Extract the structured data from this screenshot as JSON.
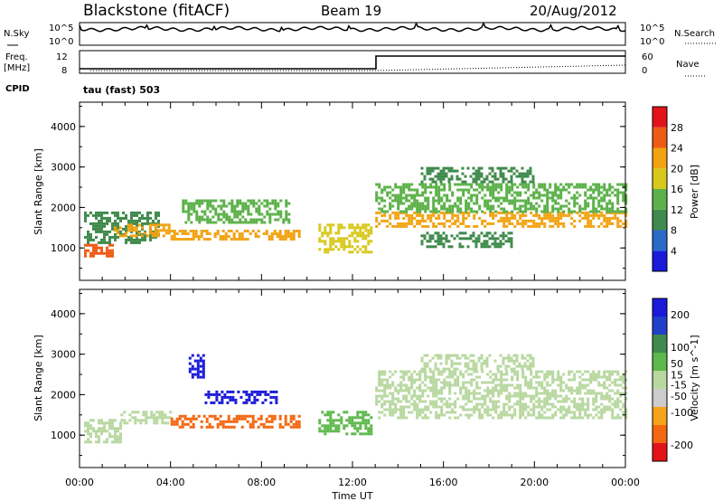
{
  "header": {
    "station": "Blackstone (fitACF)",
    "beam": "Beam 19",
    "date": "20/Aug/2012"
  },
  "left_labels": {
    "nsky": "N.Sky",
    "freq": "Freq.",
    "freq_unit": "[MHz]",
    "cpid": "CPID"
  },
  "right_labels": {
    "nsearch": "N.Search",
    "nave": "Nave"
  },
  "tick_labels": {
    "noise_top": "10^5",
    "noise_bottom": "10^0",
    "freq_top": "12",
    "freq_bottom": "8",
    "nave_top": "60",
    "nave_bottom": "0"
  },
  "cpid_text": "tau (fast) 503",
  "colors": {
    "power": [
      "#1a1ad9",
      "#2a6ac8",
      "#3f8a4c",
      "#5cb14a",
      "#d8c81a",
      "#f2a312",
      "#ef5a15",
      "#e2141a"
    ],
    "velocity": [
      "#e2141a",
      "#f2670f",
      "#f5a21a",
      "#cccccc",
      "#b8d8a0",
      "#5cb84a",
      "#3f8a4c",
      "#2040c8",
      "#1a1ad9"
    ]
  },
  "chart_data": [
    {
      "type": "heatmap",
      "name": "power",
      "xlabel": "",
      "ylabel": "Slant Range [km]",
      "x_ticks": [
        "00:00",
        "04:00",
        "08:00",
        "12:00",
        "16:00",
        "20:00",
        "00:00"
      ],
      "xlim": [
        0,
        24
      ],
      "ylim": [
        200,
        4600
      ],
      "y_ticks": [
        1000,
        2000,
        3000,
        4000
      ],
      "colorbar": {
        "label": "Power [dB]",
        "ticks": [
          4,
          8,
          12,
          16,
          20,
          24,
          28
        ],
        "range": [
          0,
          32
        ]
      },
      "regions": [
        {
          "t0": 0.2,
          "t1": 1.4,
          "r0": 800,
          "r1": 1100,
          "value": 26
        },
        {
          "t0": 0.2,
          "t1": 3.5,
          "r0": 1100,
          "r1": 1900,
          "value": 10
        },
        {
          "t0": 1.5,
          "t1": 4.0,
          "r0": 1300,
          "r1": 1600,
          "value": 20
        },
        {
          "t0": 4.0,
          "t1": 9.7,
          "r0": 1200,
          "r1": 1450,
          "value": 22
        },
        {
          "t0": 4.5,
          "t1": 9.2,
          "r0": 1600,
          "r1": 2200,
          "value": 12
        },
        {
          "t0": 10.5,
          "t1": 12.8,
          "r0": 900,
          "r1": 1600,
          "value": 18
        },
        {
          "t0": 13.0,
          "t1": 24.0,
          "r0": 1500,
          "r1": 1900,
          "value": 20
        },
        {
          "t0": 13.0,
          "t1": 24.0,
          "r0": 1900,
          "r1": 2600,
          "value": 14
        },
        {
          "t0": 15.0,
          "t1": 20.0,
          "r0": 2600,
          "r1": 3000,
          "value": 10
        },
        {
          "t0": 15.0,
          "t1": 19.0,
          "r0": 1000,
          "r1": 1400,
          "value": 8
        }
      ]
    },
    {
      "type": "heatmap",
      "name": "velocity",
      "xlabel": "Time UT",
      "ylabel": "Slant Range [km]",
      "x_ticks": [
        "00:00",
        "04:00",
        "08:00",
        "12:00",
        "16:00",
        "20:00",
        "00:00"
      ],
      "xlim": [
        0,
        24
      ],
      "ylim": [
        200,
        4600
      ],
      "y_ticks": [
        1000,
        2000,
        3000,
        4000
      ],
      "colorbar": {
        "label": "Velocity [m s^-1]",
        "ticks": [
          -200,
          -100,
          -50,
          -15,
          15,
          50,
          100,
          200
        ],
        "range": [
          -250,
          250
        ]
      },
      "regions": [
        {
          "t0": 0.2,
          "t1": 1.8,
          "r0": 800,
          "r1": 1400,
          "value": 0
        },
        {
          "t0": 1.8,
          "t1": 4.0,
          "r0": 1300,
          "r1": 1600,
          "value": 0
        },
        {
          "t0": 4.0,
          "t1": 9.7,
          "r0": 1200,
          "r1": 1500,
          "value": -180
        },
        {
          "t0": 4.8,
          "t1": 5.4,
          "r0": 2400,
          "r1": 3000,
          "value": 220
        },
        {
          "t0": 5.5,
          "t1": 8.6,
          "r0": 1800,
          "r1": 2100,
          "value": 200
        },
        {
          "t0": 10.5,
          "t1": 12.8,
          "r0": 1000,
          "r1": 1600,
          "value": 60
        },
        {
          "t0": 13.0,
          "t1": 24.0,
          "r0": 1400,
          "r1": 2600,
          "value": 0
        },
        {
          "t0": 15.0,
          "t1": 20.0,
          "r0": 2600,
          "r1": 3000,
          "value": 0
        }
      ]
    }
  ]
}
